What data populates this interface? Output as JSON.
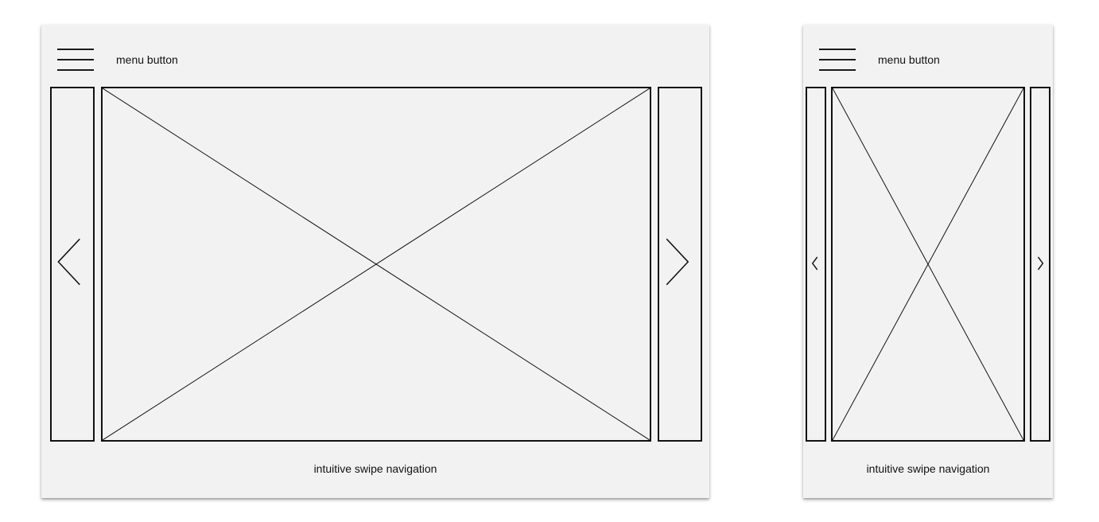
{
  "tablet": {
    "menu_label": "menu button",
    "caption": "intuitive swipe navigation",
    "icons": {
      "menu": "hamburger-menu-icon",
      "prev": "chevron-left-icon",
      "next": "chevron-right-icon",
      "image": "image-placeholder-icon"
    }
  },
  "phone": {
    "menu_label": "menu button",
    "caption": "intuitive swipe navigation",
    "icons": {
      "menu": "hamburger-menu-icon",
      "prev": "chevron-left-icon",
      "next": "chevron-right-icon",
      "image": "image-placeholder-icon"
    }
  },
  "colors": {
    "frame_background": "#f2f2f2",
    "stroke": "#111111",
    "page_background": "#ffffff"
  }
}
